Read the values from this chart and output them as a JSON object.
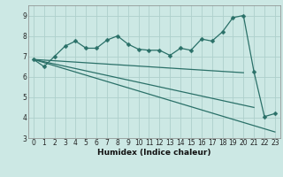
{
  "xlabel": "Humidex (Indice chaleur)",
  "bg_color": "#cce8e4",
  "grid_color": "#aed0cc",
  "line_color": "#2a7068",
  "curve_x": [
    0,
    1,
    2,
    3,
    4,
    5,
    6,
    7,
    8,
    9,
    10,
    11,
    12,
    13,
    14,
    15,
    16,
    17,
    18,
    19,
    20,
    21,
    22,
    23
  ],
  "curve_y": [
    6.85,
    6.5,
    7.0,
    7.5,
    7.75,
    7.4,
    7.4,
    7.8,
    8.0,
    7.6,
    7.35,
    7.3,
    7.3,
    7.05,
    7.4,
    7.3,
    7.85,
    7.75,
    8.2,
    8.9,
    9.0,
    6.25,
    4.05,
    4.2
  ],
  "trend1_x": [
    0,
    23
  ],
  "trend1_y": [
    6.85,
    3.3
  ],
  "trend2_x": [
    0,
    21
  ],
  "trend2_y": [
    6.85,
    4.5
  ],
  "trend3_x": [
    0,
    20
  ],
  "trend3_y": [
    6.85,
    6.2
  ],
  "ylim_min": 3.0,
  "ylim_max": 9.5,
  "xlim_min": -0.5,
  "xlim_max": 23.5,
  "yticks": [
    3,
    4,
    5,
    6,
    7,
    8,
    9
  ],
  "xticks": [
    0,
    1,
    2,
    3,
    4,
    5,
    6,
    7,
    8,
    9,
    10,
    11,
    12,
    13,
    14,
    15,
    16,
    17,
    18,
    19,
    20,
    21,
    22,
    23
  ],
  "tick_fontsize": 5.5,
  "xlabel_fontsize": 6.5,
  "marker_size": 2.5
}
